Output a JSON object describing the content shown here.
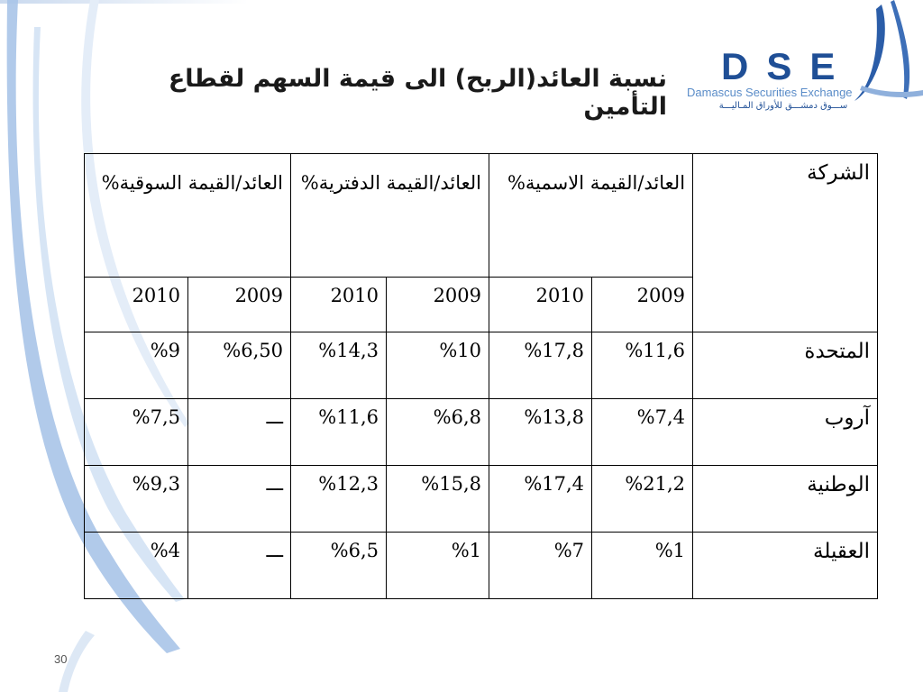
{
  "slide": {
    "title": "نسبة العائد(الربح) الى قيمة السهم لقطاع التأمين",
    "page_number": "30"
  },
  "logo": {
    "letters": "DSE",
    "english": "Damascus Securities Exchange",
    "arabic": "ســـوق دمشـــق للأوراق المـاليـــة"
  },
  "table": {
    "company_header": "الشركة",
    "groups": [
      {
        "label": "العائد/القيمة الاسمية%",
        "years": [
          "2009",
          "2010"
        ]
      },
      {
        "label": "العائد/القيمة الدفترية%",
        "years": [
          "2009",
          "2010"
        ]
      },
      {
        "label": "العائد/القيمة السوقية%",
        "years": [
          "2009",
          "2010"
        ]
      }
    ],
    "rows": [
      {
        "company": "المتحدة",
        "values": [
          "%11,6",
          "%17,8",
          "%10",
          "%14,3",
          "%6,50",
          "%9"
        ]
      },
      {
        "company": "آروب",
        "values": [
          "%7,4",
          "%13,8",
          "%6,8",
          "%11,6",
          "ـــ",
          "%7,5"
        ]
      },
      {
        "company": "الوطنية",
        "values": [
          "%21,2",
          "%17,4",
          "%15,8",
          "%12,3",
          "ـــ",
          "%9,3"
        ]
      },
      {
        "company": "العقيلة",
        "values": [
          "%1",
          "%7",
          "%1",
          "%6,5",
          "ـــ",
          "%4"
        ]
      }
    ]
  }
}
